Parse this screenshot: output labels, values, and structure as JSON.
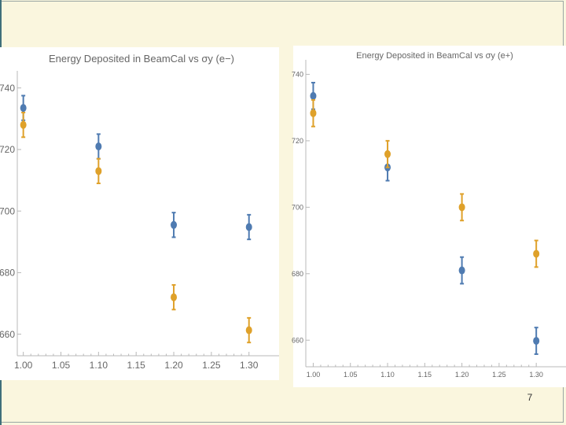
{
  "page_number": "7",
  "colors": {
    "series_a": "#4f7bb1",
    "series_b": "#dfa12a",
    "axis": "#b8b8b8",
    "tick_label": "#666666",
    "title": "#666666"
  },
  "chart_data": [
    {
      "type": "scatter",
      "title": "Energy Deposited in BeamCal vs σy (e−)",
      "x_ticks": [
        "1.00",
        "1.05",
        "1.10",
        "1.15",
        "1.20",
        "1.25",
        "1.30"
      ],
      "y_ticks": [
        "740",
        "720",
        "700",
        "680",
        "660"
      ],
      "xlim": [
        0.992,
        1.34
      ],
      "ylim": [
        653,
        743
      ],
      "error_bars": true,
      "series": [
        {
          "x": [
            1.0,
            1.1,
            1.2,
            1.3
          ],
          "y": [
            733.5,
            721,
            695.5,
            694.8
          ],
          "err": [
            4,
            4,
            4,
            4
          ]
        },
        {
          "x": [
            1.0,
            1.1,
            1.2,
            1.3
          ],
          "y": [
            728,
            713,
            672,
            661.3
          ],
          "err": [
            4,
            4,
            4,
            4
          ]
        }
      ]
    },
    {
      "type": "scatter",
      "title": "Energy Deposited in BeamCal vs σy (e+)",
      "x_ticks": [
        "1.00",
        "1.05",
        "1.10",
        "1.15",
        "1.20",
        "1.25",
        "1.30"
      ],
      "y_ticks": [
        "740",
        "720",
        "700",
        "680",
        "660"
      ],
      "xlim": [
        0.99,
        1.34
      ],
      "ylim": [
        652,
        742
      ],
      "error_bars": true,
      "series": [
        {
          "x": [
            1.0,
            1.1,
            1.2,
            1.3
          ],
          "y": [
            733.5,
            712,
            681,
            659.8
          ],
          "err": [
            4,
            4,
            4,
            4
          ]
        },
        {
          "x": [
            1.0,
            1.1,
            1.2,
            1.3
          ],
          "y": [
            728.3,
            716,
            700,
            686
          ],
          "err": [
            4,
            4,
            4,
            4
          ]
        }
      ]
    }
  ]
}
